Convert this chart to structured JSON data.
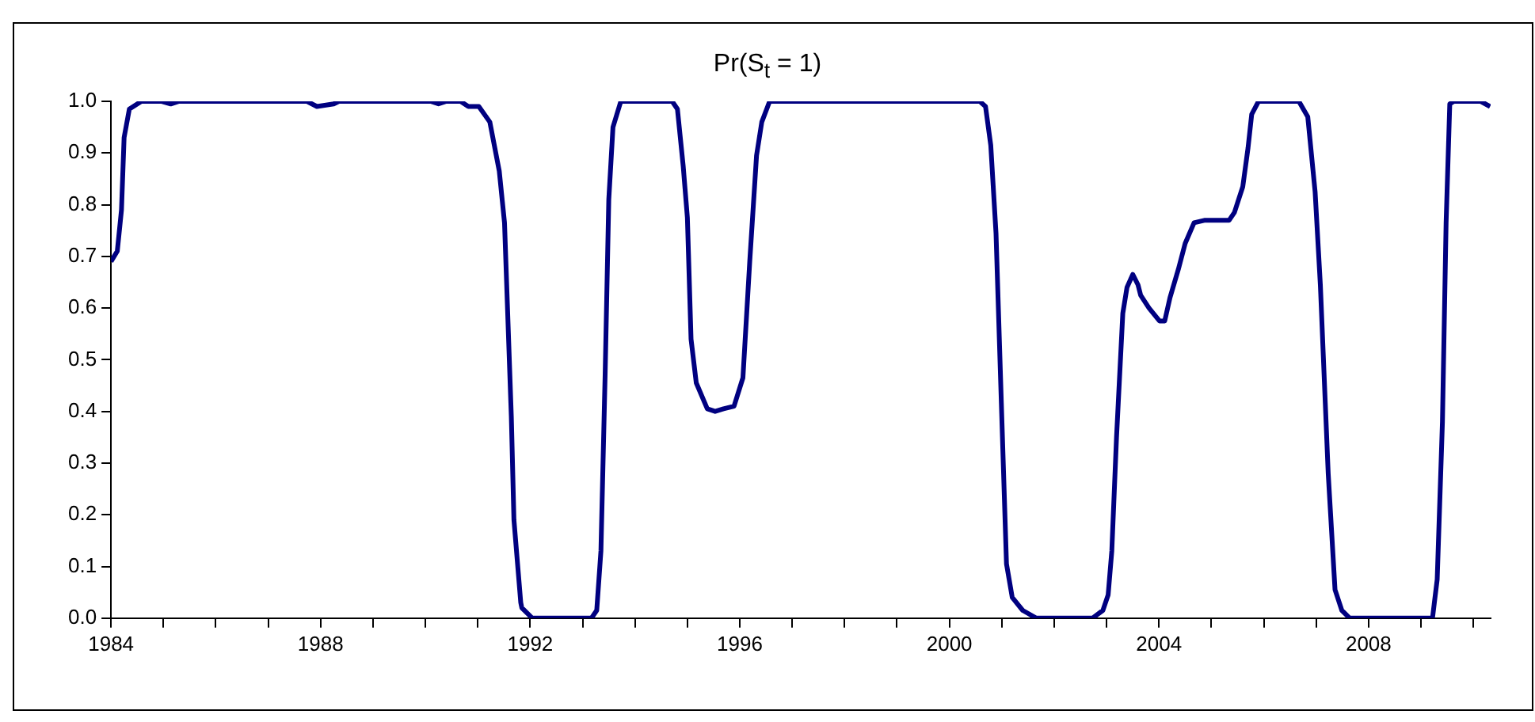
{
  "chart_data": {
    "type": "line",
    "title": "Pr(S$_{t}$ = 1)",
    "x": [
      1984.0,
      1984.12,
      1984.2,
      1984.25,
      1984.35,
      1984.58,
      1984.97,
      1985.14,
      1985.3,
      1987.74,
      1987.93,
      1988.25,
      1988.35,
      1990.1,
      1990.25,
      1990.4,
      1990.67,
      1990.82,
      1991.02,
      1991.23,
      1991.41,
      1991.51,
      1991.64,
      1991.69,
      1991.82,
      1991.84,
      1992.04,
      1993.17,
      1993.27,
      1993.35,
      1993.43,
      1993.5,
      1993.58,
      1993.73,
      1994.71,
      1994.81,
      1994.92,
      1995.0,
      1995.07,
      1995.17,
      1995.38,
      1995.53,
      1995.69,
      1995.89,
      1996.06,
      1996.19,
      1996.32,
      1996.42,
      1996.57,
      2000.58,
      2000.69,
      2000.79,
      2000.89,
      2001.0,
      2001.09,
      2001.2,
      2001.4,
      2001.66,
      2002.73,
      2002.93,
      2003.03,
      2003.1,
      2003.19,
      2003.31,
      2003.39,
      2003.5,
      2003.6,
      2003.65,
      2003.81,
      2004.01,
      2004.11,
      2004.21,
      2004.37,
      2004.5,
      2004.67,
      2004.88,
      2005.34,
      2005.44,
      2005.6,
      2005.7,
      2005.77,
      2005.9,
      2006.67,
      2006.84,
      2006.98,
      2007.08,
      2007.23,
      2007.36,
      2007.49,
      2007.64,
      2009.22,
      2009.31,
      2009.41,
      2009.48,
      2009.55,
      2009.63,
      2010.14,
      2010.32
    ],
    "series": [
      {
        "color": "#000080",
        "values": [
          0.69,
          0.71,
          0.79,
          0.93,
          0.985,
          1.0,
          1.0,
          0.995,
          1.0,
          1.0,
          0.99,
          0.995,
          1.0,
          1.0,
          0.995,
          1.0,
          1.0,
          0.99,
          0.99,
          0.96,
          0.865,
          0.765,
          0.39,
          0.19,
          0.03,
          0.02,
          0.0,
          0.0,
          0.015,
          0.13,
          0.47,
          0.81,
          0.95,
          1.0,
          1.0,
          0.985,
          0.875,
          0.775,
          0.54,
          0.455,
          0.405,
          0.4,
          0.405,
          0.41,
          0.465,
          0.69,
          0.895,
          0.96,
          1.0,
          1.0,
          0.99,
          0.915,
          0.745,
          0.39,
          0.105,
          0.04,
          0.015,
          0.0,
          0.0,
          0.015,
          0.045,
          0.13,
          0.35,
          0.59,
          0.64,
          0.665,
          0.645,
          0.625,
          0.6,
          0.575,
          0.575,
          0.62,
          0.675,
          0.725,
          0.765,
          0.77,
          0.77,
          0.785,
          0.835,
          0.91,
          0.975,
          1.0,
          1.0,
          0.97,
          0.825,
          0.645,
          0.28,
          0.055,
          0.015,
          0.0,
          0.0,
          0.075,
          0.38,
          0.765,
          0.995,
          1.0,
          1.0,
          0.99
        ]
      }
    ],
    "xlim": [
      1984,
      2010.33
    ],
    "xticks": [
      1984,
      {
        "value": 1985,
        "label": null
      },
      {
        "value": 1986,
        "label": null
      },
      {
        "value": 1987,
        "label": null
      },
      1988,
      {
        "value": 1989,
        "label": null
      },
      {
        "value": 1990,
        "label": null
      },
      {
        "value": 1991,
        "label": null
      },
      1992,
      {
        "value": 1993,
        "label": null
      },
      {
        "value": 1994,
        "label": null
      },
      {
        "value": 1995,
        "label": null
      },
      1996,
      {
        "value": 1997,
        "label": null
      },
      {
        "value": 1998,
        "label": null
      },
      {
        "value": 1999,
        "label": null
      },
      2000,
      {
        "value": 2001,
        "label": null
      },
      {
        "value": 2002,
        "label": null
      },
      {
        "value": 2003,
        "label": null
      },
      2004,
      {
        "value": 2005,
        "label": null
      },
      {
        "value": 2006,
        "label": null
      },
      {
        "value": 2007,
        "label": null
      },
      2008,
      {
        "value": 2009,
        "label": null
      },
      {
        "value": 2010,
        "label": null
      }
    ],
    "ylim": [
      0,
      1
    ],
    "yticks": [
      {
        "value": 0,
        "label": "0.0"
      },
      0.1,
      0.2,
      0.3,
      0.4,
      0.5,
      0.6,
      0.7,
      0.8,
      0.9,
      {
        "value": 1,
        "label": "1.0"
      }
    ],
    "grid": false,
    "legend": false,
    "marker": "none",
    "line_style": "solid"
  }
}
